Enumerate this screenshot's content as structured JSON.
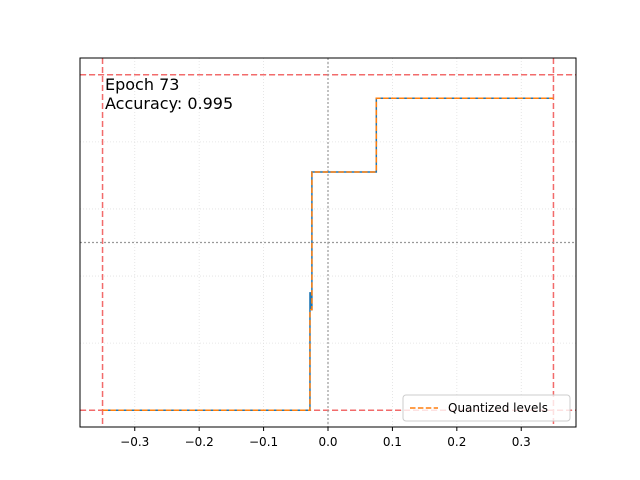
{
  "chart_data": {
    "type": "line",
    "title": "",
    "xlabel": "",
    "ylabel": "",
    "xlim": [
      -0.385,
      0.385
    ],
    "ylim": [
      -0.05,
      1.05
    ],
    "grid": true,
    "legend_position": "lower-right",
    "x_ticks": [
      -0.3,
      -0.2,
      -0.1,
      0.0,
      0.1,
      0.2,
      0.3
    ],
    "x_tick_labels": [
      "−0.3",
      "−0.2",
      "−0.1",
      "0.0",
      "0.1",
      "0.2",
      "0.3"
    ],
    "annotations": [
      "Epoch 73",
      "Accuracy: 0.995"
    ],
    "reference_lines": {
      "red_dashed_vertical_x": [
        -0.35,
        0.35
      ],
      "red_dashed_horizontal_y": [
        0.0,
        1.0
      ],
      "gray_dotted_vertical_x": [
        0.0
      ],
      "gray_dotted_horizontal_y": [
        0.5
      ]
    },
    "series": [
      {
        "style": "solid",
        "color": "#1f77b4",
        "x": [
          -0.35,
          -0.028,
          -0.028,
          -0.026,
          -0.026,
          -0.025,
          -0.025,
          0.075,
          0.075,
          0.35
        ],
        "y": [
          0.0,
          0.0,
          0.35,
          0.35,
          0.3,
          0.3,
          0.71,
          0.71,
          0.93,
          0.93
        ]
      },
      {
        "name": "Quantized levels",
        "style": "dashed",
        "color": "#ff7f0e",
        "x": [
          -0.35,
          -0.028,
          -0.028,
          -0.025,
          -0.025,
          0.075,
          0.075,
          0.35
        ],
        "y": [
          0.0,
          0.0,
          0.3,
          0.3,
          0.71,
          0.71,
          0.93,
          0.93
        ]
      }
    ],
    "colors": {
      "reference_red": "#f26b6b",
      "reference_gray": "#999999",
      "grid": "#e0e0e0"
    }
  }
}
